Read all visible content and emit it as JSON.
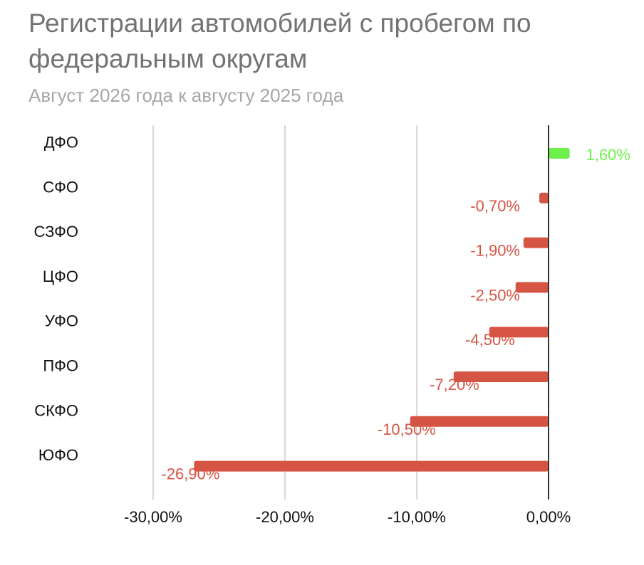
{
  "title": "Регистрации автомобилей с пробегом по федеральным округам",
  "subtitle": "Август 2026 года к августу 2025 года",
  "colors": {
    "positive": "#6df14a",
    "negative": "#d65444",
    "grid": "#cccccc",
    "zero_axis": "#333333",
    "text": "#111111"
  },
  "chart_data": {
    "type": "bar",
    "orientation": "horizontal",
    "title": "Регистрации автомобилей с пробегом по федеральным округам",
    "subtitle": "Август 2026 года к августу 2025 года",
    "categories": [
      "ДФО",
      "СФО",
      "СЗФО",
      "ЦФО",
      "УФО",
      "ПФО",
      "СКФО",
      "ЮФО"
    ],
    "values": [
      1.6,
      -0.7,
      -1.9,
      -2.5,
      -4.5,
      -7.2,
      -10.5,
      -26.9
    ],
    "value_labels": [
      "1,60%",
      "-0,70%",
      "-1,90%",
      "-2,50%",
      "-4,50%",
      "-7,20%",
      "-10,50%",
      "-26,90%"
    ],
    "xticks": [
      -30,
      -20,
      -10,
      0
    ],
    "xtick_labels": [
      "-30,00%",
      "-20,00%",
      "-10,00%",
      "0,00%"
    ],
    "xlim": [
      -30,
      0
    ],
    "xlabel": "",
    "ylabel": "",
    "grid": true,
    "legend": "none"
  }
}
